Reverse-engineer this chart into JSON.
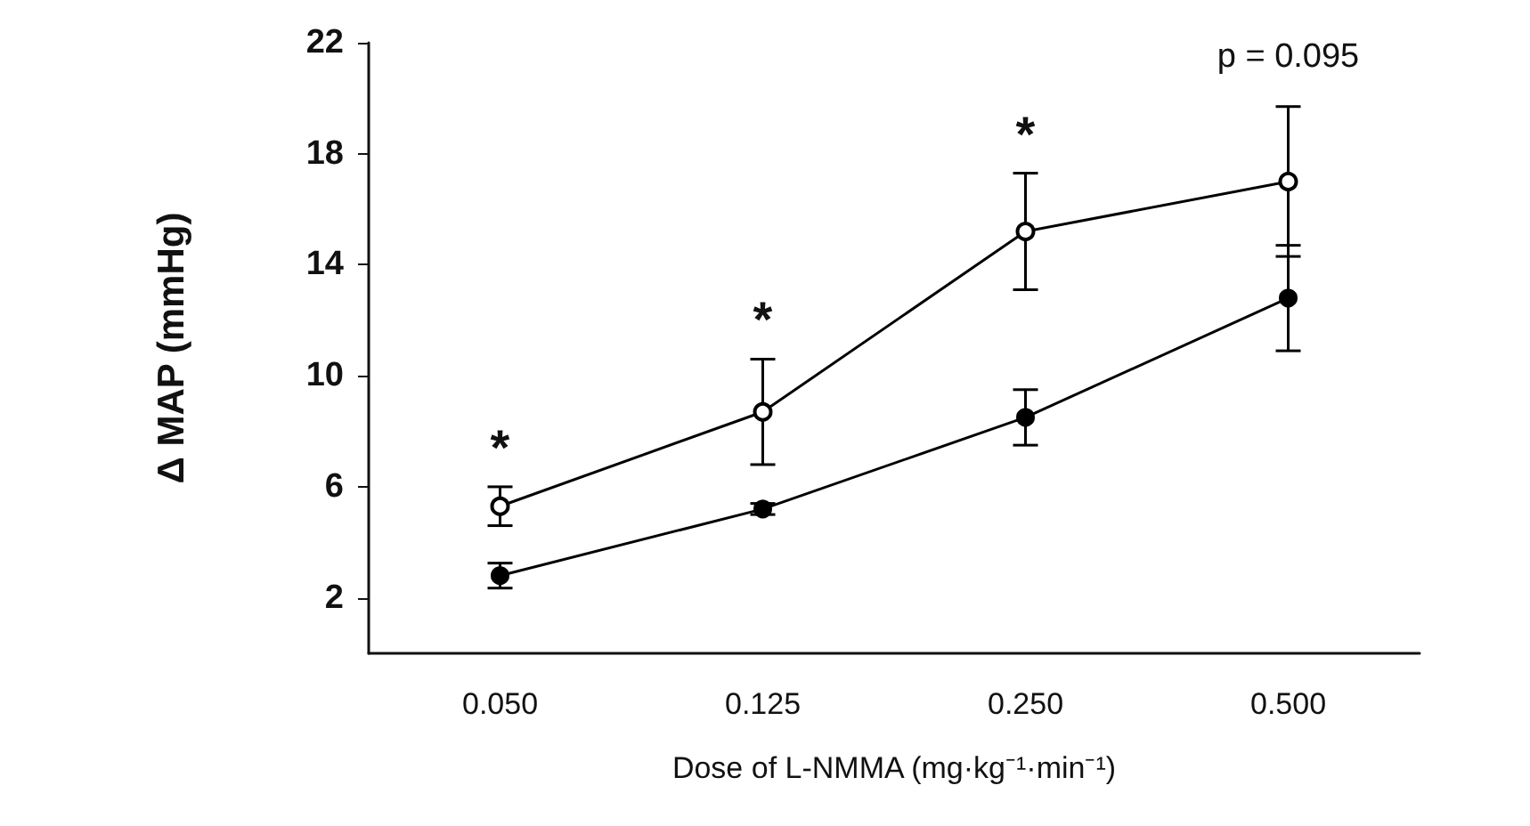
{
  "chart_data": {
    "type": "line",
    "xlabel": "Dose of L-NMMA (mg·kg⁻¹·min⁻¹)",
    "ylabel": "Δ MAP (mmHg)",
    "categories": [
      "0.050",
      "0.125",
      "0.250",
      "0.500"
    ],
    "series": [
      {
        "color": "#000000",
        "values": [
          5.3,
          8.7,
          15.2,
          17.0
        ],
        "errors": [
          0.7,
          1.9,
          2.1,
          2.7
        ]
      },
      {
        "color": "#000000",
        "values": [
          2.8,
          5.2,
          8.5,
          12.8
        ],
        "errors": [
          0.45,
          0.2,
          1.0,
          1.9
        ]
      }
    ],
    "ylim": [
      0,
      22
    ],
    "yticks": [
      2,
      6,
      10,
      14,
      18,
      22
    ],
    "annotations": [
      "*",
      "*",
      "*",
      "p = 0.095"
    ],
    "marker": "circle",
    "line_style": "solid",
    "grid": false
  }
}
